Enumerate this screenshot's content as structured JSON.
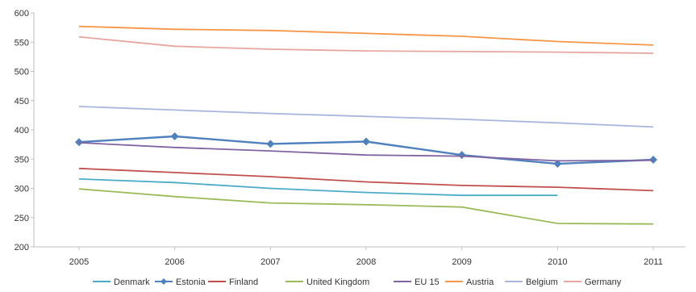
{
  "chart_data": {
    "type": "line",
    "title": "",
    "xlabel": "",
    "ylabel": "",
    "x": [
      "2005",
      "2006",
      "2007",
      "2008",
      "2009",
      "2010",
      "2011"
    ],
    "ylim": [
      200,
      600
    ],
    "yticks": [
      200,
      250,
      300,
      350,
      400,
      450,
      500,
      550,
      600
    ],
    "grid": false,
    "legend_position": "bottom",
    "series": [
      {
        "name": "Denmark",
        "color": "#4bacc6",
        "marker": "none",
        "values": [
          316,
          310,
          300,
          293,
          288,
          288,
          null
        ]
      },
      {
        "name": "Estonia",
        "color": "#4f81bd",
        "marker": "diamond",
        "values": [
          379,
          389,
          376,
          380,
          357,
          342,
          349
        ]
      },
      {
        "name": "Finland",
        "color": "#c0504d",
        "marker": "none",
        "values": [
          334,
          327,
          320,
          311,
          305,
          302,
          296
        ]
      },
      {
        "name": "United Kingdom",
        "color": "#9bbb59",
        "marker": "none",
        "values": [
          299,
          286,
          275,
          272,
          268,
          240,
          239
        ]
      },
      {
        "name": "EU 15",
        "color": "#8064a2",
        "marker": "none",
        "values": [
          378,
          370,
          364,
          357,
          355,
          347,
          348
        ]
      },
      {
        "name": "Austria",
        "color": "#f79646",
        "marker": "none",
        "values": [
          577,
          572,
          570,
          565,
          560,
          551,
          545
        ]
      },
      {
        "name": "Belgium",
        "color": "#aab7dd",
        "marker": "none",
        "values": [
          440,
          434,
          428,
          423,
          418,
          412,
          405
        ]
      },
      {
        "name": "Germany",
        "color": "#e6a6a2",
        "marker": "none",
        "values": [
          559,
          543,
          538,
          535,
          534,
          533,
          531
        ]
      }
    ]
  }
}
